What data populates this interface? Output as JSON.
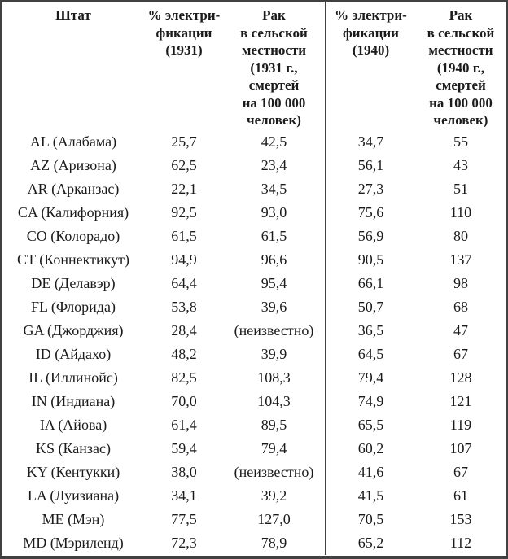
{
  "colors": {
    "background": "#ffffff",
    "text": "#1b1b1b",
    "border": "#414141"
  },
  "table": {
    "headers": [
      "Штат",
      "% электри-\nфикации\n(1931)",
      "Рак\nв сельской\nместности\n(1931 г.,\nсмертей\nна 100 000\nчеловек)",
      "% электри-\nфикации\n(1940)",
      "Рак\nв сельской\nместности\n(1940 г.,\nсмертей\nна 100 000\nчеловек)"
    ],
    "unknown_value_label": "(неизвестно)",
    "rows": [
      [
        "AL (Алабама)",
        "25,7",
        "42,5",
        "34,7",
        "55"
      ],
      [
        "AZ (Аризона)",
        "62,5",
        "23,4",
        "56,1",
        "43"
      ],
      [
        "AR (Арканзас)",
        "22,1",
        "34,5",
        "27,3",
        "51"
      ],
      [
        "CA (Калифорния)",
        "92,5",
        "93,0",
        "75,6",
        "110"
      ],
      [
        "CO (Колорадо)",
        "61,5",
        "61,5",
        "56,9",
        "80"
      ],
      [
        "CT (Коннектикут)",
        "94,9",
        "96,6",
        "90,5",
        "137"
      ],
      [
        "DE (Делавэр)",
        "64,4",
        "95,4",
        "66,1",
        "98"
      ],
      [
        "FL (Флорида)",
        "53,8",
        "39,6",
        "50,7",
        "68"
      ],
      [
        "GA (Джорджия)",
        "28,4",
        "(неизвестно)",
        "36,5",
        "47"
      ],
      [
        "ID (Айдахо)",
        "48,2",
        "39,9",
        "64,5",
        "67"
      ],
      [
        "IL (Иллинойс)",
        "82,5",
        "108,3",
        "79,4",
        "128"
      ],
      [
        "IN (Индиана)",
        "70,0",
        "104,3",
        "74,9",
        "121"
      ],
      [
        "IA (Айова)",
        "61,4",
        "89,5",
        "65,5",
        "119"
      ],
      [
        "KS (Канзас)",
        "59,4",
        "79,4",
        "60,2",
        "107"
      ],
      [
        "KY (Кентукки)",
        "38,0",
        "(неизвестно)",
        "41,6",
        "67"
      ],
      [
        "LA (Луизиана)",
        "34,1",
        "39,2",
        "41,5",
        "61"
      ],
      [
        "ME (Мэн)",
        "77,5",
        "127,0",
        "70,5",
        "153"
      ],
      [
        "MD (Мэриленд)",
        "72,3",
        "78,9",
        "65,2",
        "112"
      ]
    ]
  }
}
